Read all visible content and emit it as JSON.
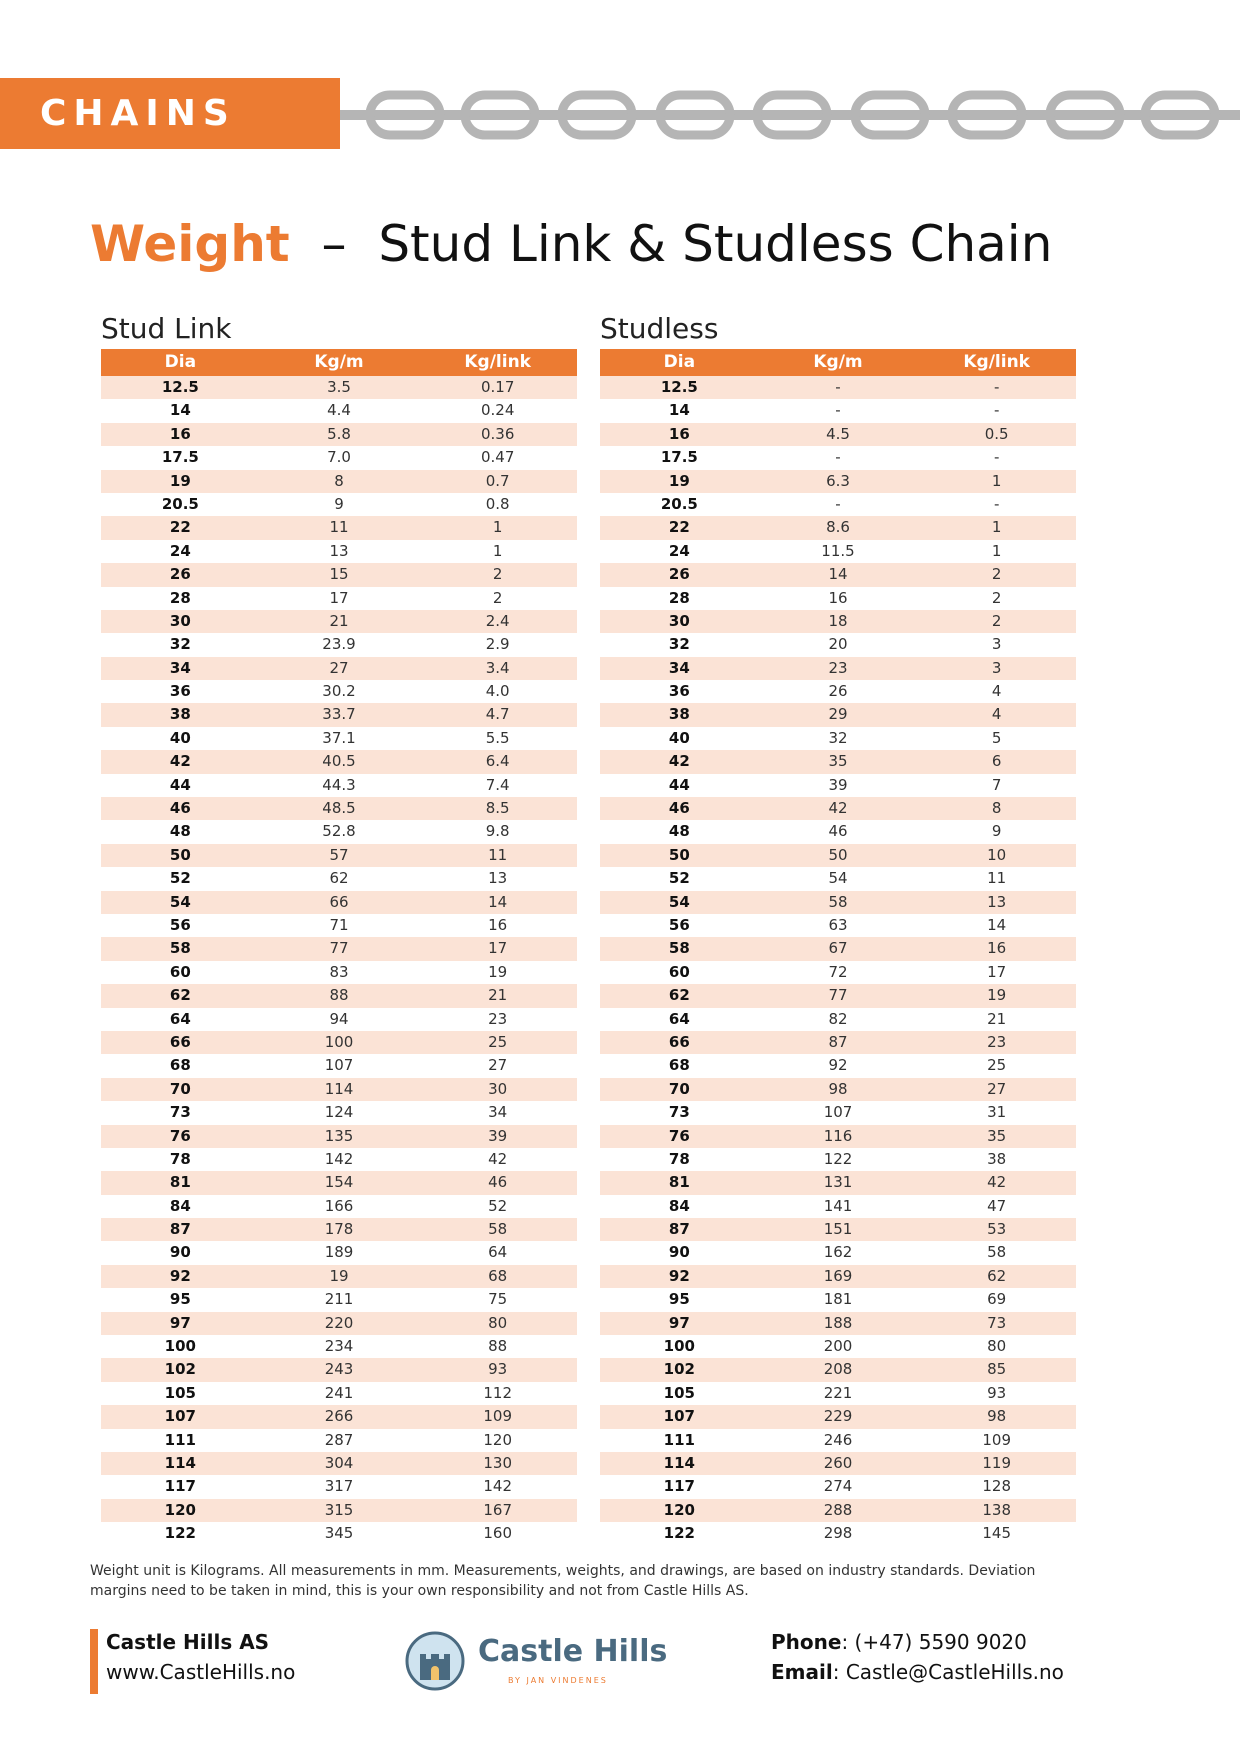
{
  "header": {
    "label": "CHAINS"
  },
  "title": {
    "highlight": "Weight",
    "dash": "–",
    "rest": "Stud Link & Studless Chain"
  },
  "tables": [
    {
      "caption": "Stud Link",
      "columns": [
        "Dia",
        "Kg/m",
        "Kg/link"
      ],
      "rows": [
        [
          "12.5",
          "3.5",
          "0.17"
        ],
        [
          "14",
          "4.4",
          "0.24"
        ],
        [
          "16",
          "5.8",
          "0.36"
        ],
        [
          "17.5",
          "7.0",
          "0.47"
        ],
        [
          "19",
          "8",
          "0.7"
        ],
        [
          "20.5",
          "9",
          "0.8"
        ],
        [
          "22",
          "11",
          "1"
        ],
        [
          "24",
          "13",
          "1"
        ],
        [
          "26",
          "15",
          "2"
        ],
        [
          "28",
          "17",
          "2"
        ],
        [
          "30",
          "21",
          "2.4"
        ],
        [
          "32",
          "23.9",
          "2.9"
        ],
        [
          "34",
          "27",
          "3.4"
        ],
        [
          "36",
          "30.2",
          "4.0"
        ],
        [
          "38",
          "33.7",
          "4.7"
        ],
        [
          "40",
          "37.1",
          "5.5"
        ],
        [
          "42",
          "40.5",
          "6.4"
        ],
        [
          "44",
          "44.3",
          "7.4"
        ],
        [
          "46",
          "48.5",
          "8.5"
        ],
        [
          "48",
          "52.8",
          "9.8"
        ],
        [
          "50",
          "57",
          "11"
        ],
        [
          "52",
          "62",
          "13"
        ],
        [
          "54",
          "66",
          "14"
        ],
        [
          "56",
          "71",
          "16"
        ],
        [
          "58",
          "77",
          "17"
        ],
        [
          "60",
          "83",
          "19"
        ],
        [
          "62",
          "88",
          "21"
        ],
        [
          "64",
          "94",
          "23"
        ],
        [
          "66",
          "100",
          "25"
        ],
        [
          "68",
          "107",
          "27"
        ],
        [
          "70",
          "114",
          "30"
        ],
        [
          "73",
          "124",
          "34"
        ],
        [
          "76",
          "135",
          "39"
        ],
        [
          "78",
          "142",
          "42"
        ],
        [
          "81",
          "154",
          "46"
        ],
        [
          "84",
          "166",
          "52"
        ],
        [
          "87",
          "178",
          "58"
        ],
        [
          "90",
          "189",
          "64"
        ],
        [
          "92",
          "19",
          "68"
        ],
        [
          "95",
          "211",
          "75"
        ],
        [
          "97",
          "220",
          "80"
        ],
        [
          "100",
          "234",
          "88"
        ],
        [
          "102",
          "243",
          "93"
        ],
        [
          "105",
          "241",
          "112"
        ],
        [
          "107",
          "266",
          "109"
        ],
        [
          "111",
          "287",
          "120"
        ],
        [
          "114",
          "304",
          "130"
        ],
        [
          "117",
          "317",
          "142"
        ],
        [
          "120",
          "315",
          "167"
        ],
        [
          "122",
          "345",
          "160"
        ]
      ]
    },
    {
      "caption": "Studless",
      "columns": [
        "Dia",
        "Kg/m",
        "Kg/link"
      ],
      "rows": [
        [
          "12.5",
          "-",
          "-"
        ],
        [
          "14",
          "-",
          "-"
        ],
        [
          "16",
          "4.5",
          "0.5"
        ],
        [
          "17.5",
          "-",
          "-"
        ],
        [
          "19",
          "6.3",
          "1"
        ],
        [
          "20.5",
          "-",
          "-"
        ],
        [
          "22",
          "8.6",
          "1"
        ],
        [
          "24",
          "11.5",
          "1"
        ],
        [
          "26",
          "14",
          "2"
        ],
        [
          "28",
          "16",
          "2"
        ],
        [
          "30",
          "18",
          "2"
        ],
        [
          "32",
          "20",
          "3"
        ],
        [
          "34",
          "23",
          "3"
        ],
        [
          "36",
          "26",
          "4"
        ],
        [
          "38",
          "29",
          "4"
        ],
        [
          "40",
          "32",
          "5"
        ],
        [
          "42",
          "35",
          "6"
        ],
        [
          "44",
          "39",
          "7"
        ],
        [
          "46",
          "42",
          "8"
        ],
        [
          "48",
          "46",
          "9"
        ],
        [
          "50",
          "50",
          "10"
        ],
        [
          "52",
          "54",
          "11"
        ],
        [
          "54",
          "58",
          "13"
        ],
        [
          "56",
          "63",
          "14"
        ],
        [
          "58",
          "67",
          "16"
        ],
        [
          "60",
          "72",
          "17"
        ],
        [
          "62",
          "77",
          "19"
        ],
        [
          "64",
          "82",
          "21"
        ],
        [
          "66",
          "87",
          "23"
        ],
        [
          "68",
          "92",
          "25"
        ],
        [
          "70",
          "98",
          "27"
        ],
        [
          "73",
          "107",
          "31"
        ],
        [
          "76",
          "116",
          "35"
        ],
        [
          "78",
          "122",
          "38"
        ],
        [
          "81",
          "131",
          "42"
        ],
        [
          "84",
          "141",
          "47"
        ],
        [
          "87",
          "151",
          "53"
        ],
        [
          "90",
          "162",
          "58"
        ],
        [
          "92",
          "169",
          "62"
        ],
        [
          "95",
          "181",
          "69"
        ],
        [
          "97",
          "188",
          "73"
        ],
        [
          "100",
          "200",
          "80"
        ],
        [
          "102",
          "208",
          "85"
        ],
        [
          "105",
          "221",
          "93"
        ],
        [
          "107",
          "229",
          "98"
        ],
        [
          "111",
          "246",
          "109"
        ],
        [
          "114",
          "260",
          "119"
        ],
        [
          "117",
          "274",
          "128"
        ],
        [
          "120",
          "288",
          "138"
        ],
        [
          "122",
          "298",
          "145"
        ]
      ]
    }
  ],
  "note": "Weight unit is Kilograms. All measurements in mm. Measurements, weights, and drawings, are based on industry standards. Deviation margins need to be taken in mind, this is your own responsibility and not from Castle Hills AS.",
  "footer": {
    "company": {
      "name": "Castle Hills AS",
      "website": "www.CastleHills.no"
    },
    "logo": {
      "name": "Castle Hills",
      "tagline": "BY JAN VINDENES"
    },
    "contact": {
      "phone_label": "Phone",
      "phone": ": (+47) 5590 9020",
      "email_label": "Email",
      "email": ": Castle@CastleHills.no"
    }
  }
}
